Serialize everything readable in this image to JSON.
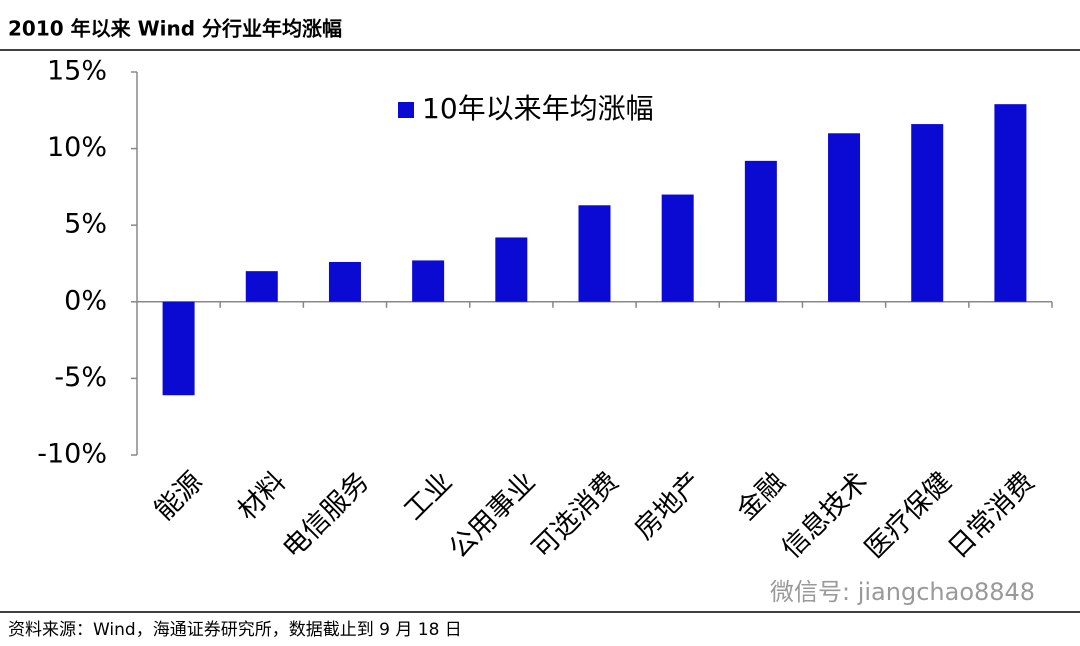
{
  "chart_data": {
    "type": "bar",
    "title": "2010 年以来 Wind 分行业年均涨幅",
    "categories": [
      "能源",
      "材料",
      "电信服务",
      "工业",
      "公用事业",
      "可选消费",
      "房地产",
      "金融",
      "信息技术",
      "医疗保健",
      "日常消费"
    ],
    "series": [
      {
        "name": "10年以来年均涨幅",
        "color": "#0a0ad2",
        "values": [
          -6.1,
          2.0,
          2.6,
          2.7,
          4.2,
          6.3,
          7.0,
          9.2,
          11.0,
          11.6,
          12.9
        ]
      }
    ],
    "ylim": [
      -10,
      15
    ],
    "yticks": [
      {
        "value": -10,
        "label": "-10%"
      },
      {
        "value": -5,
        "label": "-5%"
      },
      {
        "value": 0,
        "label": "0%"
      },
      {
        "value": 5,
        "label": "5%"
      },
      {
        "value": 10,
        "label": "10%"
      },
      {
        "value": 15,
        "label": "15%"
      }
    ],
    "grid": false,
    "legend": "top"
  },
  "source": "资料来源：Wind，海通证券研究所，数据截止到 9 月 18 日",
  "watermark": "微信号: jiangchao8848"
}
